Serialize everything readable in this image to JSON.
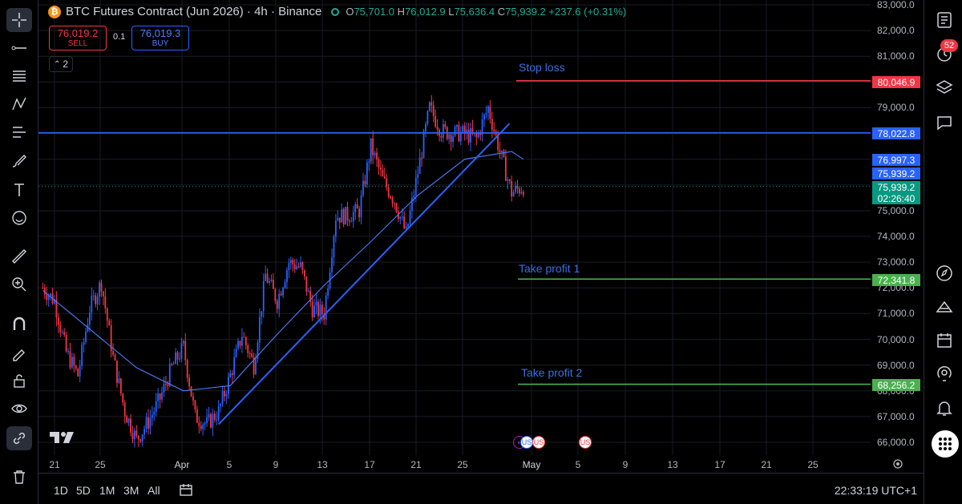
{
  "symbol": {
    "title": "BTC Futures Contract (Jun 2026) · 4h · Binance",
    "ohlc": {
      "o_key": "O",
      "o": "75,701.0",
      "h_key": "H",
      "h": "76,012.9",
      "l_key": "L",
      "l": "75,636.4",
      "c_key": "C",
      "c": "75,939.2",
      "change": "+237.6 (+0.31%)"
    }
  },
  "trade": {
    "sell_price": "76,019.2",
    "sell_label": "SELL",
    "spread": "0.1",
    "buy_price": "76,019.3",
    "buy_label": "BUY"
  },
  "indicators_count": "2",
  "lines": {
    "stop_loss": {
      "label": "Stop loss",
      "price": "80,046.9",
      "color": "#f23645"
    },
    "take_profit_1": {
      "label": "Take profit 1",
      "price": "72,341.8",
      "color": "#4caf50"
    },
    "take_profit_2": {
      "label": "Take profit 2",
      "price": "68,256.2",
      "color": "#4caf50"
    },
    "resistance": {
      "price": "78,022.8",
      "color": "#2962ff"
    }
  },
  "price_tags": {
    "ma": "76,997.3",
    "last_blue": "75,939.2",
    "last_green": "75,939.2",
    "countdown": "02:26:40"
  },
  "price_scale": [
    "83,000.0",
    "82,000.0",
    "81,000.0",
    "80,000.0",
    "79,000.0",
    "78,000.0",
    "77,000.0",
    "76,000.0",
    "75,000.0",
    "74,000.0",
    "73,000.0",
    "72,000.0",
    "71,000.0",
    "70,000.0",
    "69,000.0",
    "68,000.0",
    "67,000.0",
    "66,000.0"
  ],
  "time_axis": [
    "21",
    "25",
    "Apr",
    "5",
    "9",
    "13",
    "17",
    "21",
    "25",
    "May",
    "5",
    "9",
    "13",
    "17",
    "21",
    "25"
  ],
  "ranges": [
    "1D",
    "5D",
    "1M",
    "3M",
    "All"
  ],
  "clock": "22:33:19 UTC+1",
  "notifications": "52",
  "colors": {
    "up": "#2962ff",
    "down": "#f23645",
    "accent": "#2962ff",
    "green": "#089981"
  },
  "chart_data": {
    "type": "candlestick",
    "ylim": [
      65700,
      83000
    ],
    "price_path": [
      [
        "Mar 20",
        72000
      ],
      [
        "Mar 21",
        71500
      ],
      [
        "Mar 22",
        69500
      ],
      [
        "Mar 23",
        68600
      ],
      [
        "Mar 24",
        71200
      ],
      [
        "Mar 25",
        72200
      ],
      [
        "Mar 26",
        69300
      ],
      [
        "Mar 27",
        67200
      ],
      [
        "Mar 28",
        66100
      ],
      [
        "Mar 29",
        66800
      ],
      [
        "Mar 30",
        67700
      ],
      [
        "Mar 31",
        68900
      ],
      [
        "Apr 1",
        69700
      ],
      [
        "Apr 2",
        67000
      ],
      [
        "Apr 3",
        66700
      ],
      [
        "Apr 4",
        67200
      ],
      [
        "Apr 5",
        68600
      ],
      [
        "Apr 6",
        70200
      ],
      [
        "Apr 7",
        69000
      ],
      [
        "Apr 8",
        72500
      ],
      [
        "Apr 9",
        71500
      ],
      [
        "Apr 10",
        73000
      ],
      [
        "Apr 11",
        72800
      ],
      [
        "Apr 12",
        71200
      ],
      [
        "Apr 13",
        71000
      ],
      [
        "Apr 14",
        74800
      ],
      [
        "Apr 15",
        74800
      ],
      [
        "Apr 16",
        75000
      ],
      [
        "Apr 17",
        77500
      ],
      [
        "Apr 18",
        76200
      ],
      [
        "Apr 19",
        75400
      ],
      [
        "Apr 20",
        74100
      ],
      [
        "Apr 21",
        76500
      ],
      [
        "Apr 22",
        79000
      ],
      [
        "Apr 23",
        78100
      ],
      [
        "Apr 24",
        78000
      ],
      [
        "Apr 25",
        78000
      ],
      [
        "Apr 26",
        77800
      ],
      [
        "Apr 27",
        79000
      ],
      [
        "Apr 28",
        77300
      ],
      [
        "Apr 29",
        75700
      ],
      [
        "Apr 30",
        75939
      ]
    ],
    "moving_average": [
      [
        "Mar 20",
        71900
      ],
      [
        "Mar 24",
        70400
      ],
      [
        "Mar 28",
        68900
      ],
      [
        "Apr 1",
        68000
      ],
      [
        "Apr 5",
        68200
      ],
      [
        "Apr 9",
        70200
      ],
      [
        "Apr 13",
        72100
      ],
      [
        "Apr 17",
        73800
      ],
      [
        "Apr 21",
        75600
      ],
      [
        "Apr 25",
        77000
      ],
      [
        "Apr 29",
        77300
      ],
      [
        "Apr 30",
        77000
      ]
    ],
    "trendline": {
      "from": [
        "Apr 4",
        66700
      ],
      "to": [
        "Apr 28",
        78200
      ]
    },
    "events": [
      "dividend",
      "US",
      "US",
      "US"
    ]
  }
}
